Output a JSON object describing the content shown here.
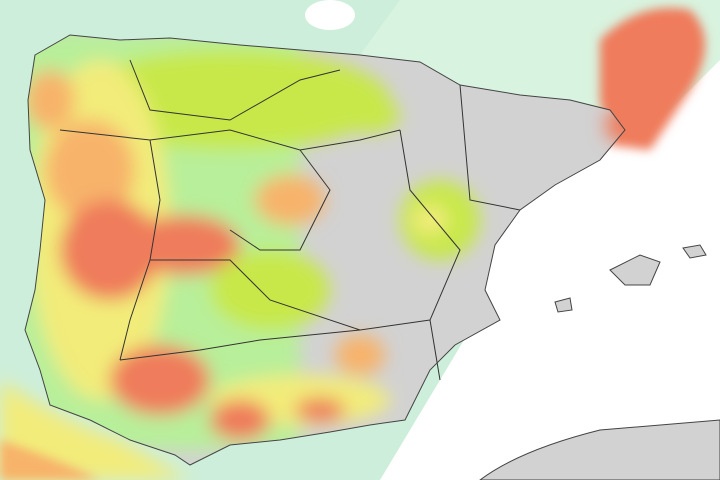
{
  "map": {
    "colors": {
      "sea_atlantic": "#cdeedb",
      "sea_mediterranean": "#ffffff",
      "land_relief": "#d2d2d2",
      "low": "#b8ef9a",
      "medium_low": "#c8e84a",
      "medium": "#f2ec7a",
      "high": "#f7b36a",
      "very_high": "#ef7b5c",
      "borders": "#333333"
    }
  }
}
